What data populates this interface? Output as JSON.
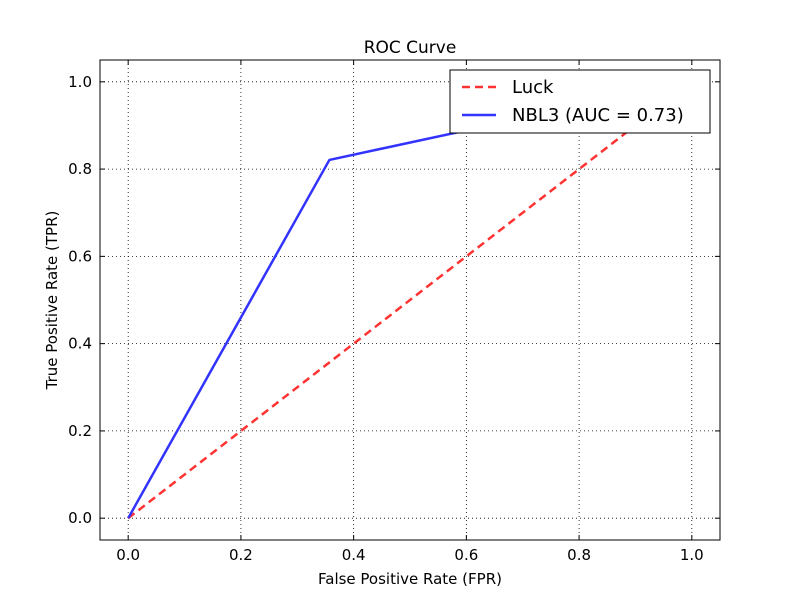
{
  "chart_data": {
    "type": "line",
    "title": "ROC Curve",
    "xlabel": "False Positive Rate (FPR)",
    "ylabel": "True Positive Rate (TPR)",
    "xlim": [
      -0.05,
      1.05
    ],
    "ylim": [
      -0.05,
      1.05
    ],
    "x_ticks": [
      0.0,
      0.2,
      0.4,
      0.6,
      0.8,
      1.0
    ],
    "y_ticks": [
      0.0,
      0.2,
      0.4,
      0.6,
      0.8,
      1.0
    ],
    "x_tick_labels": [
      "0.0",
      "0.2",
      "0.4",
      "0.6",
      "0.8",
      "1.0"
    ],
    "y_tick_labels": [
      "0.0",
      "0.2",
      "0.4",
      "0.6",
      "0.8",
      "1.0"
    ],
    "grid": true,
    "legend_position": "top-right",
    "series": [
      {
        "name": "Luck",
        "style": "dashed",
        "color": "#ff3333",
        "x": [
          0.0,
          1.0
        ],
        "y": [
          0.0,
          1.0
        ]
      },
      {
        "name": "NBL3 (AUC = 0.73)",
        "style": "solid",
        "color": "#3333ff",
        "x": [
          0.0,
          0.357,
          1.0
        ],
        "y": [
          0.0,
          0.821,
          1.0
        ]
      }
    ]
  }
}
